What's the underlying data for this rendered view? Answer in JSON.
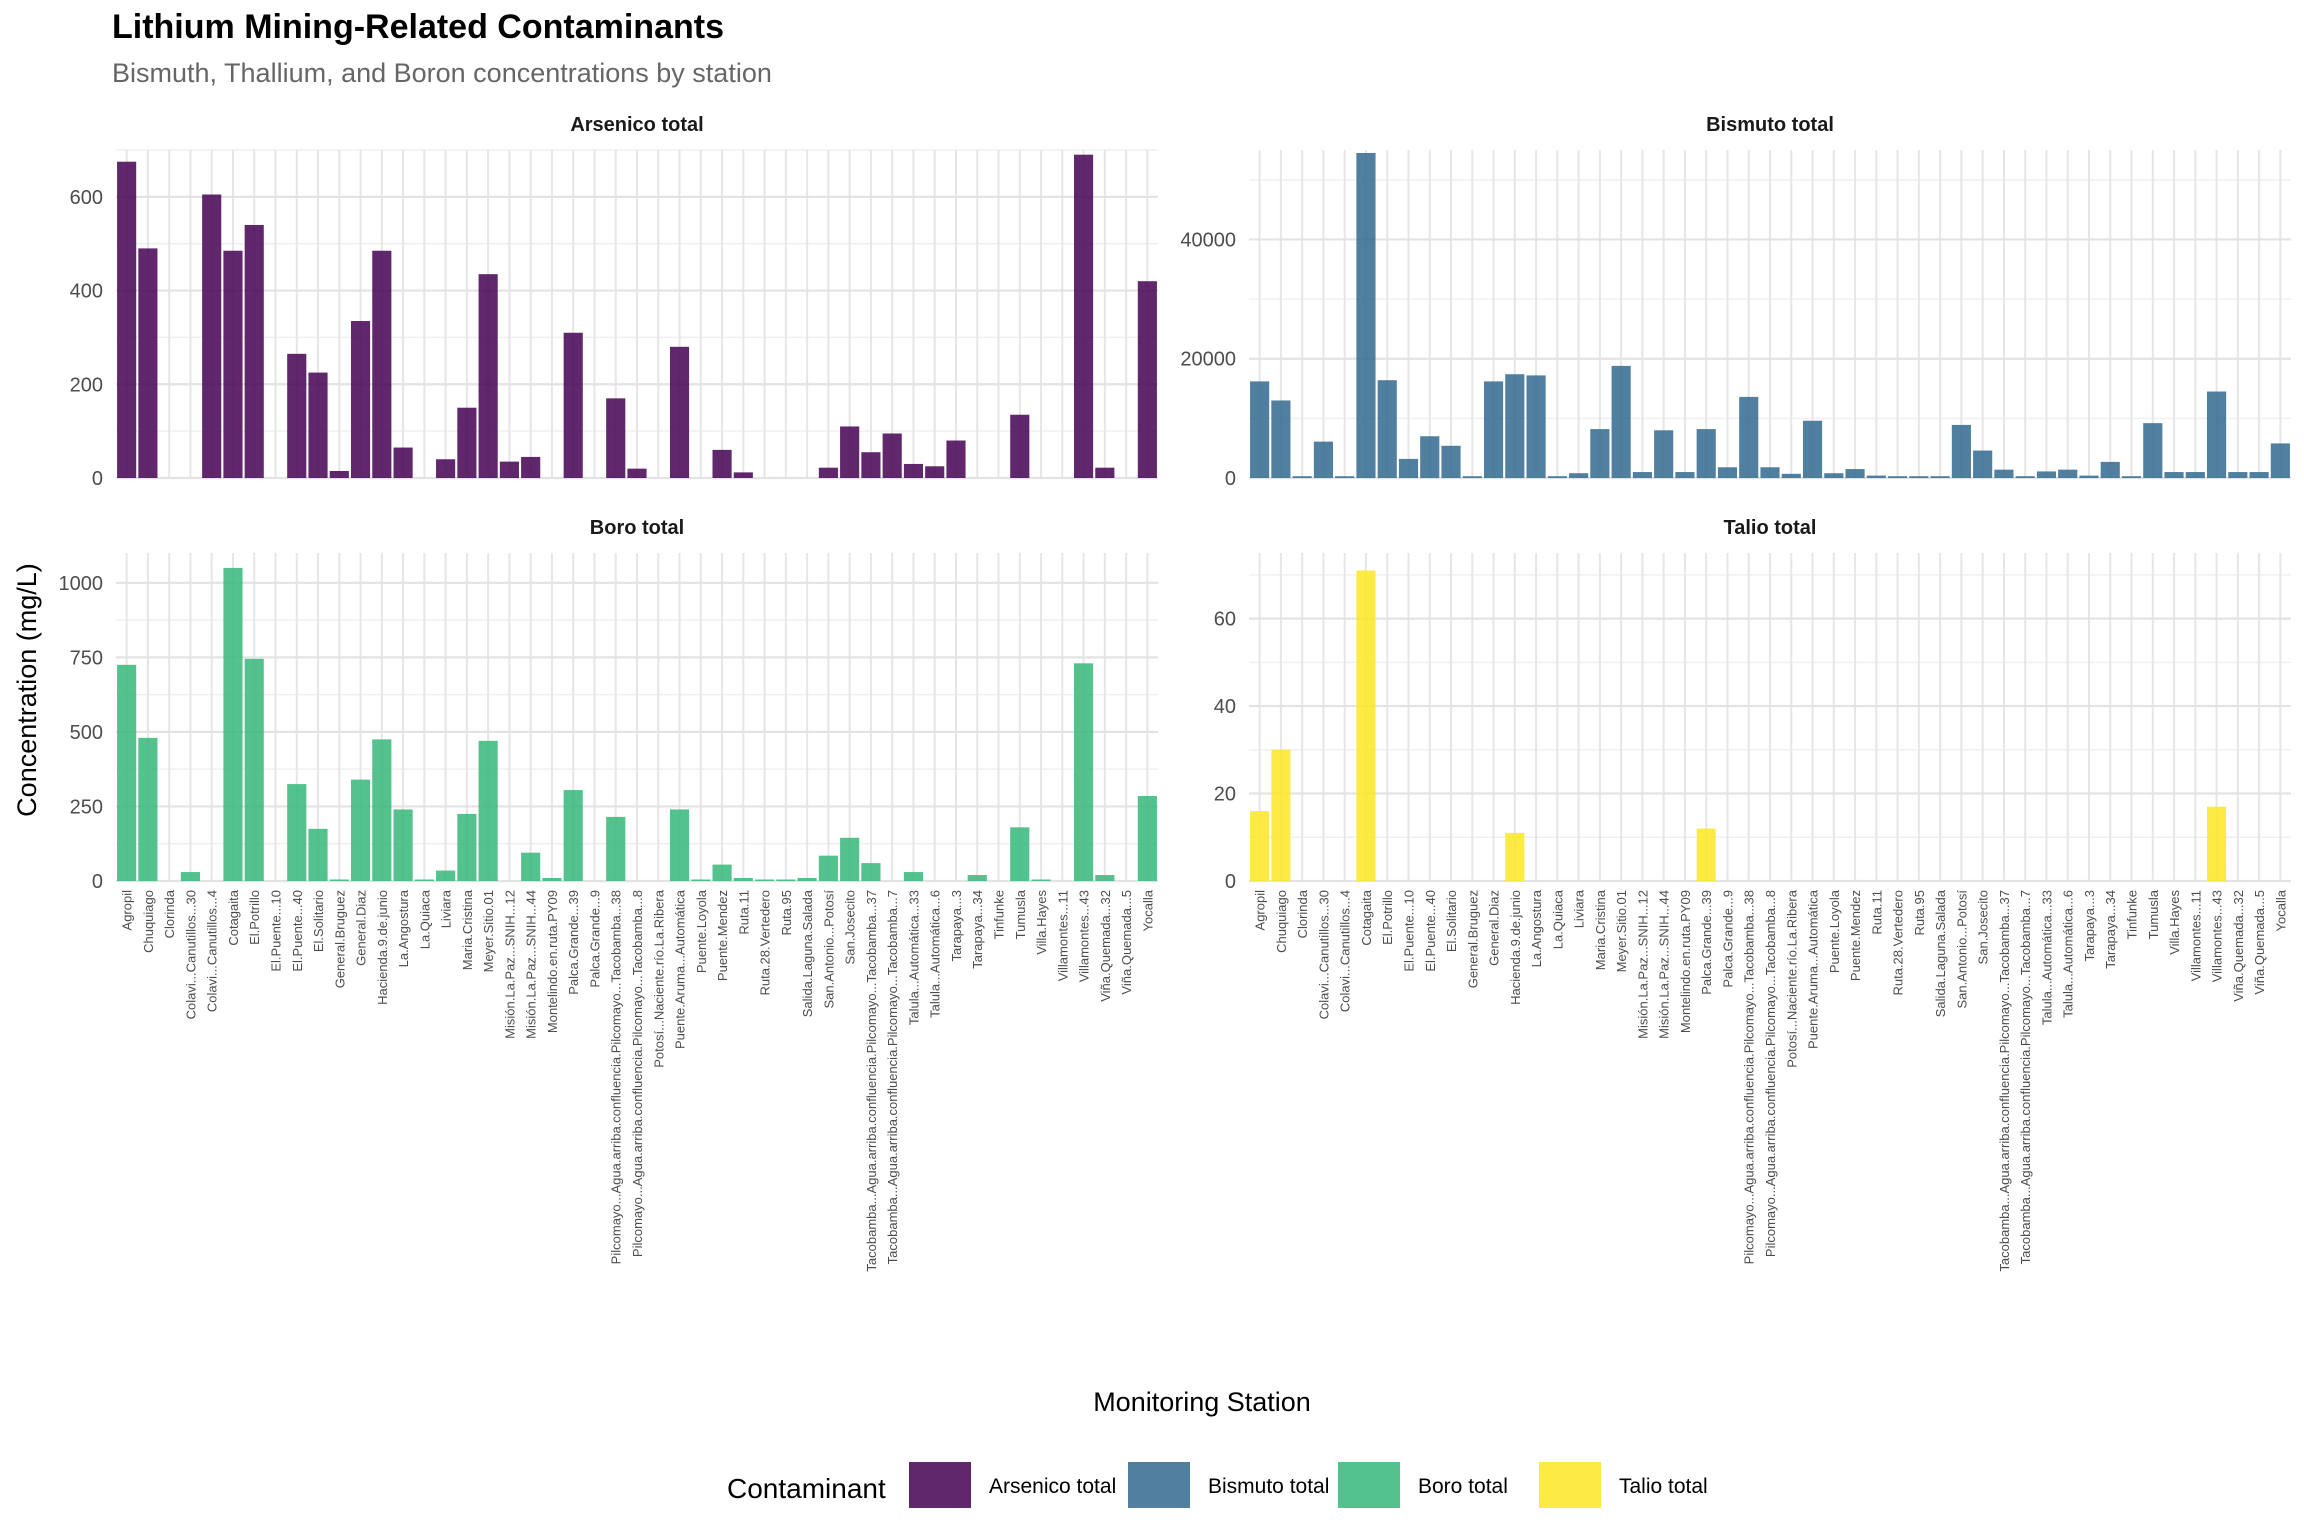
{
  "title": "Lithium Mining-Related Contaminants",
  "subtitle": "Bismuth, Thallium, and Boron concentrations by station",
  "xlabel": "Monitoring Station",
  "ylabel": "Concentration (mg/L)",
  "legend": {
    "title": "Contaminant",
    "items": [
      {
        "label": "Arsenico total",
        "color": "#440154"
      },
      {
        "label": "Bismuto total",
        "color": "#31688e"
      },
      {
        "label": "Boro total",
        "color": "#35b779"
      },
      {
        "label": "Talio total",
        "color": "#fde725"
      }
    ]
  },
  "chart_data": {
    "type": "bar",
    "layout": "facet 2x2",
    "categories": [
      "Agropil",
      "Chuquiago",
      "Clorinda",
      "Colavi...Canutillos...30",
      "Colavi...Canutillos...4",
      "Cotagaita",
      "El.Potrillo",
      "El.Puente...10",
      "El.Puente...40",
      "El.Solitario",
      "General.Bruguez",
      "General.Diaz",
      "Hacienda.9.de.junio",
      "La.Angostura",
      "La.Quiaca",
      "Liviara",
      "Maria.Cristina",
      "Meyer.Sitio.01",
      "Misión.La.Paz...SNIH...12",
      "Misión.La.Paz...SNIH...44",
      "Montelindo.en.ruta.PY09",
      "Palca.Grande...39",
      "Palca.Grande...9",
      "Pilcomayo...Agua.arriba.confluencia.Pilcomayo...Tacobamba...38",
      "Pilcomayo...Agua.arriba.confluencia.Pilcomayo...Tacobamba...8",
      "Potosí...Naciente.río.La.Ribera",
      "Puente.Aruma...Automática",
      "Puente.Loyola",
      "Puente.Mendez",
      "Ruta.11",
      "Ruta.28.Vertedero",
      "Ruta.95",
      "Salida.Laguna.Salada",
      "San.Antonio...Potosí",
      "San.Josecito",
      "Tacobamba...Agua.arriba.confluencia.Pilcomayo...Tacobamba...37",
      "Tacobamba...Agua.arriba.confluencia.Pilcomayo...Tacobamba...7",
      "Talula...Automática...33",
      "Talula...Automática...6",
      "Tarapaya...3",
      "Tarapaya...34",
      "Tinfunke",
      "Tumusla",
      "Villa.Hayes",
      "Villamontes...11",
      "Villamontes...43",
      "Viña.Quemada...32",
      "Viña.Quemada...5",
      "Yocalla"
    ],
    "panels": [
      {
        "name": "Arsenico total",
        "color": "#440154",
        "ylim": [
          0,
          700
        ],
        "yticks": [
          0,
          200,
          400,
          600
        ],
        "values": [
          675,
          490,
          0,
          0,
          605,
          485,
          540,
          0,
          265,
          225,
          15,
          335,
          485,
          65,
          0,
          40,
          150,
          435,
          35,
          45,
          0,
          310,
          0,
          170,
          20,
          0,
          280,
          0,
          60,
          12,
          0,
          0,
          0,
          22,
          110,
          55,
          95,
          30,
          25,
          80,
          0,
          0,
          135,
          0,
          0,
          690,
          22,
          0,
          420
        ]
      },
      {
        "name": "Bismuto total",
        "color": "#31688e",
        "ylim": [
          0,
          55000
        ],
        "yticks": [
          0,
          20000,
          40000
        ],
        "values": [
          16200,
          13000,
          300,
          6100,
          300,
          54500,
          16400,
          3200,
          7000,
          5400,
          300,
          16200,
          17400,
          17200,
          300,
          800,
          8200,
          18800,
          1000,
          8000,
          1000,
          8200,
          1800,
          13600,
          1800,
          700,
          9600,
          800,
          1500,
          400,
          300,
          300,
          300,
          8900,
          4600,
          1400,
          300,
          1100,
          1400,
          400,
          2700,
          300,
          9200,
          1000,
          1000,
          14500,
          1000,
          1000,
          5800
        ]
      },
      {
        "name": "Boro total",
        "color": "#35b779",
        "ylim": [
          0,
          1100
        ],
        "yticks": [
          0,
          250,
          500,
          750,
          1000
        ],
        "values": [
          725,
          480,
          0,
          30,
          0,
          1050,
          745,
          0,
          325,
          175,
          5,
          340,
          475,
          240,
          5,
          35,
          225,
          470,
          0,
          95,
          10,
          305,
          0,
          215,
          0,
          0,
          240,
          5,
          55,
          10,
          5,
          5,
          10,
          85,
          145,
          60,
          0,
          30,
          0,
          0,
          20,
          0,
          180,
          5,
          0,
          730,
          20,
          0,
          285
        ]
      },
      {
        "name": "Talio total",
        "color": "#fde725",
        "ylim": [
          0,
          75
        ],
        "yticks": [
          0,
          20,
          40,
          60
        ],
        "values": [
          16,
          30,
          0,
          0,
          0,
          71,
          0,
          0,
          0,
          0,
          0,
          0,
          11,
          0,
          0,
          0,
          0,
          0,
          0,
          0,
          0,
          12,
          0,
          0,
          0,
          0,
          0,
          0,
          0,
          0,
          0,
          0,
          0,
          0,
          0,
          0,
          0,
          0,
          0,
          0,
          0,
          0,
          0,
          0,
          0,
          17,
          0,
          0,
          0
        ]
      }
    ]
  }
}
